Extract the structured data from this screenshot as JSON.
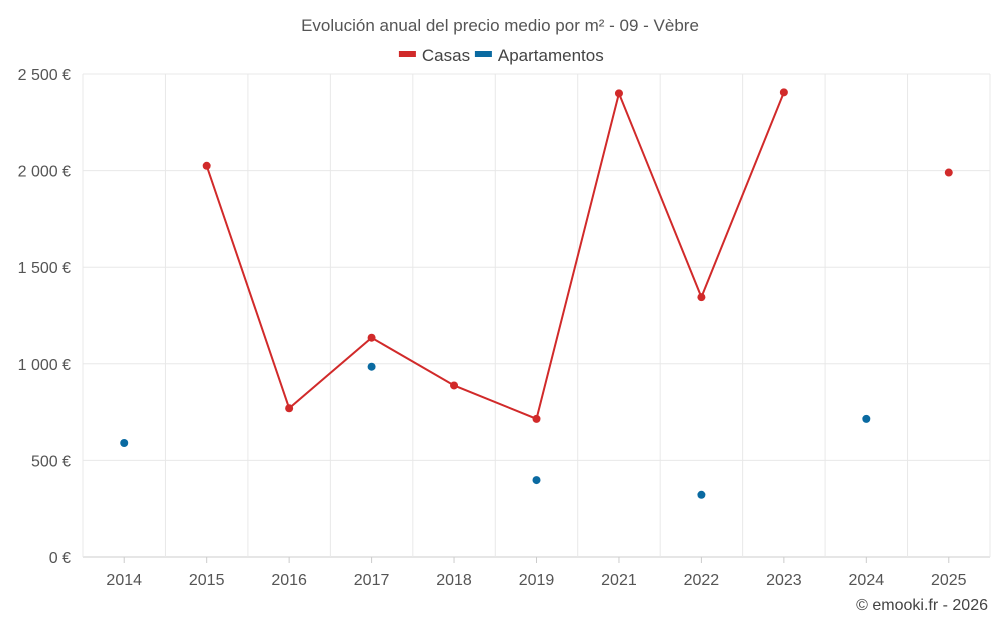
{
  "chart_data": {
    "type": "line",
    "title": "Evolución anual del precio medio por m² - 09 - Vèbre",
    "categories": [
      "2014",
      "2015",
      "2016",
      "2017",
      "2018",
      "2019",
      "2021",
      "2022",
      "2023",
      "2024",
      "2025"
    ],
    "ylim": [
      0,
      2500
    ],
    "yticks": [
      0,
      500,
      1000,
      1500,
      2000,
      2500
    ],
    "ytick_labels": [
      "0 €",
      "500 €",
      "1 000 €",
      "1 500 €",
      "2 000 €",
      "2 500 €"
    ],
    "grid": true,
    "legend_position": "top-center",
    "series": [
      {
        "name": "Casas",
        "color": "#d12a2a",
        "values": [
          null,
          2025,
          770,
          1135,
          888,
          715,
          2400,
          1345,
          2405,
          null,
          1990
        ],
        "line": true
      },
      {
        "name": "Apartamentos",
        "color": "#0a6aa1",
        "values": [
          590,
          null,
          null,
          985,
          null,
          398,
          null,
          322,
          null,
          715,
          null
        ],
        "line": false
      }
    ]
  },
  "credit": "© emooki.fr - 2026"
}
